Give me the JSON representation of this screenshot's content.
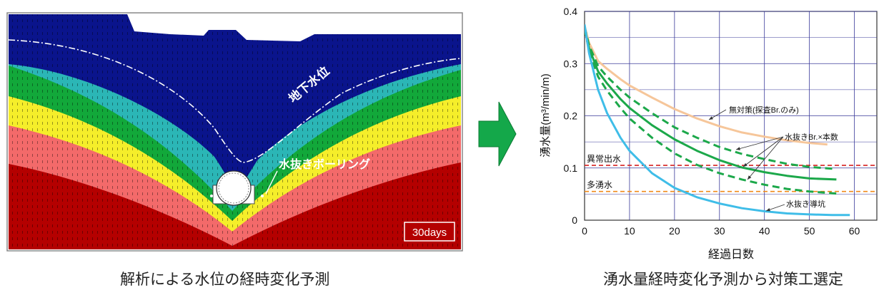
{
  "left_panel": {
    "caption": "解析による水位の経時変化予測",
    "water_table_label": "地下水位",
    "drain_boring_label": "水抜きボーリング",
    "time_badge": "30days",
    "band_colors": [
      "#0a148c",
      "#2bb6b6",
      "#12a83a",
      "#f5ee2a",
      "#f36a6a",
      "#b40000"
    ]
  },
  "arrow_color": "#14a84a",
  "right_panel": {
    "caption": "湧水量経時変化予測から対策工選定",
    "chart_data": {
      "type": "line",
      "xlabel": "経過日数",
      "ylabel": "湧水量(m³/min/m)",
      "xlim": [
        0,
        65
      ],
      "ylim": [
        0,
        0.4
      ],
      "x_ticks": [
        0,
        10,
        20,
        30,
        40,
        50,
        60
      ],
      "y_ticks": [
        0,
        0.1,
        0.2,
        0.3,
        0.4
      ],
      "y_tick_labels": [
        "0",
        "0.1",
        "0.2",
        "0.3",
        "0.4"
      ],
      "grid": true,
      "reference_lines": [
        {
          "label": "異常出水",
          "y": 0.105,
          "color": "#d62020"
        },
        {
          "label": "多湧水",
          "y": 0.055,
          "color": "#f08a1a"
        }
      ],
      "series": [
        {
          "name": "無対策(探査Br.のみ)",
          "color": "#f6c69a",
          "style": "solid",
          "width": 3,
          "x": [
            0,
            1,
            3,
            5,
            8,
            10,
            15,
            20,
            25,
            30,
            35,
            40,
            45,
            50,
            54
          ],
          "y": [
            0.372,
            0.34,
            0.305,
            0.29,
            0.27,
            0.258,
            0.235,
            0.213,
            0.195,
            0.18,
            0.168,
            0.16,
            0.153,
            0.148,
            0.145
          ]
        },
        {
          "name": "水抜きBr.×本数",
          "color": "#1ca84a",
          "style": "dashed",
          "width": 3,
          "x": [
            0,
            1,
            3,
            5,
            8,
            10,
            15,
            20,
            25,
            30,
            35,
            40,
            45,
            50,
            56
          ],
          "y": [
            0.37,
            0.335,
            0.295,
            0.275,
            0.25,
            0.235,
            0.205,
            0.178,
            0.158,
            0.14,
            0.127,
            0.117,
            0.108,
            0.102,
            0.098
          ]
        },
        {
          "name": "",
          "color": "#1ca84a",
          "style": "solid",
          "width": 3,
          "x": [
            0,
            1,
            3,
            5,
            8,
            10,
            15,
            20,
            25,
            30,
            35,
            40,
            45,
            50,
            56
          ],
          "y": [
            0.368,
            0.33,
            0.285,
            0.262,
            0.232,
            0.215,
            0.182,
            0.155,
            0.133,
            0.115,
            0.101,
            0.092,
            0.085,
            0.08,
            0.078
          ]
        },
        {
          "name": "",
          "color": "#1ca84a",
          "style": "dashed",
          "width": 3,
          "x": [
            0,
            1,
            3,
            5,
            8,
            10,
            15,
            20,
            25,
            30,
            35,
            40,
            45,
            50,
            56
          ],
          "y": [
            0.366,
            0.325,
            0.275,
            0.248,
            0.215,
            0.195,
            0.158,
            0.128,
            0.106,
            0.09,
            0.078,
            0.068,
            0.06,
            0.055,
            0.051
          ]
        },
        {
          "name": "水抜き導坑",
          "color": "#3fbde8",
          "style": "solid",
          "width": 3,
          "x": [
            0,
            1,
            3,
            5,
            8,
            10,
            15,
            20,
            25,
            30,
            35,
            40,
            45,
            50,
            55,
            59
          ],
          "y": [
            0.375,
            0.32,
            0.25,
            0.205,
            0.158,
            0.133,
            0.09,
            0.062,
            0.044,
            0.032,
            0.023,
            0.017,
            0.013,
            0.011,
            0.01,
            0.01
          ]
        }
      ],
      "annotations": [
        {
          "text": "無対策(探査Br.のみ)",
          "series": 0
        },
        {
          "text": "水抜きBr.×本数",
          "series": 1
        },
        {
          "text": "水抜き導坑",
          "series": 4
        }
      ]
    }
  }
}
